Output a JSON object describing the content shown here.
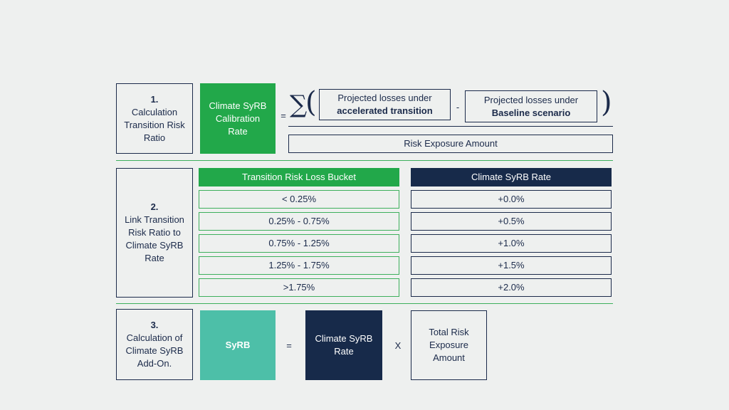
{
  "step1": {
    "number": "1.",
    "label_lines": [
      "Calculation",
      "Transition Risk",
      "Ratio"
    ],
    "calibration_rate_lines": [
      "Climate SyRB",
      "Calibration",
      "Rate"
    ],
    "equals": "=",
    "sigma": "∑",
    "open_paren": "(",
    "close_paren": ")",
    "term1_line1": "Projected losses under",
    "term1_line2": "accelerated transition",
    "minus": "-",
    "term2_line1": "Projected losses under",
    "term2_line2": "Baseline scenario",
    "denominator": "Risk Exposure Amount"
  },
  "step2": {
    "number": "2.",
    "label_lines": [
      "Link Transition",
      "Risk Ratio to",
      "Climate SyRB",
      "Rate"
    ],
    "bucket_header": "Transition Risk Loss Bucket",
    "rate_header": "Climate SyRB Rate",
    "rows": [
      {
        "bucket": "< 0.25%",
        "rate": "+0.0%"
      },
      {
        "bucket": "0.25% - 0.75%",
        "rate": "+0.5%"
      },
      {
        "bucket": "0.75% - 1.25%",
        "rate": "+1.0%"
      },
      {
        "bucket": "1.25% - 1.75%",
        "rate": "+1.5%"
      },
      {
        "bucket": ">1.75%",
        "rate": "+2.0%"
      }
    ]
  },
  "step3": {
    "number": "3.",
    "label_lines": [
      "Calculation of",
      "Climate SyRB",
      "Add-On."
    ],
    "syrb": "SyRB",
    "equals": "=",
    "rate_lines": [
      "Climate SyRB",
      "Rate"
    ],
    "times": "X",
    "exposure_lines": [
      "Total Risk",
      "Exposure",
      "Amount"
    ]
  },
  "colors": {
    "background": "#eef0ef",
    "navy": "#172a4a",
    "green": "#22a84a",
    "teal": "#4dbfa8",
    "separator": "#3daf5c"
  }
}
